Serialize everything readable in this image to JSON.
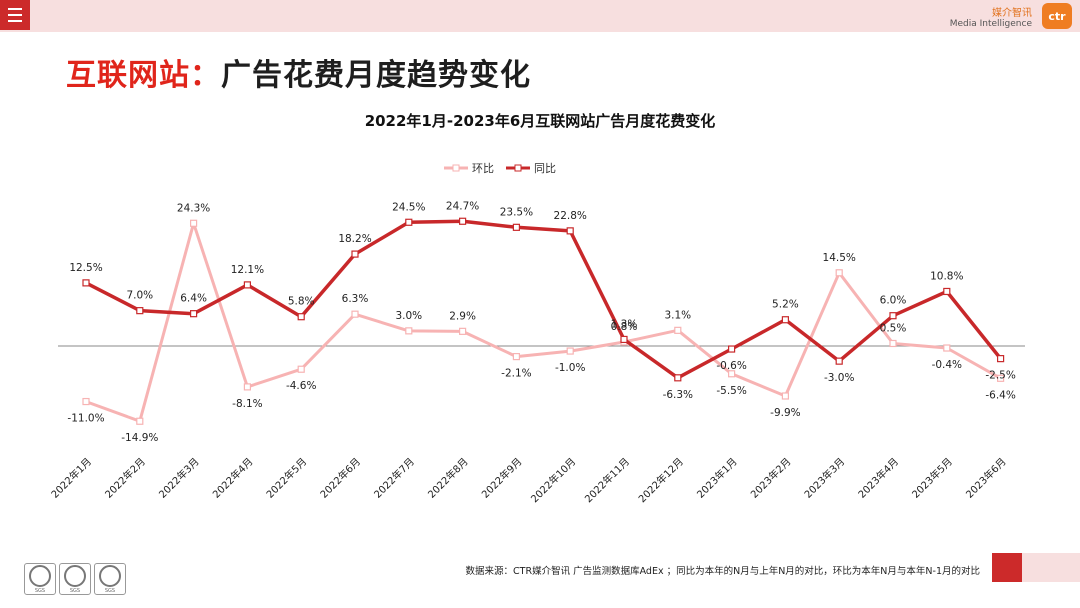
{
  "header": {
    "brand_cn": "媒介智讯",
    "brand_en": "Media Intelligence",
    "logo_text": "ctr"
  },
  "page": {
    "title_highlight": "互联网站：",
    "title_rest": "广告花费月度趋势变化"
  },
  "footer": {
    "source": "数据来源：CTR媒介智讯 广告监测数据库AdEx ；同比为本年的N月与上年N月的对比，环比为本年N月与本年N-1月的对比",
    "seal_label": "SGS"
  },
  "colors": {
    "accent": "#cc2a2a",
    "yoy": "#c8282a",
    "mom": "#f7b3b3",
    "topbar": "#f7dfdf"
  },
  "chart_data": {
    "type": "line",
    "title": "2022年1月-2023年6月互联网站广告月度花费变化",
    "categories": [
      "2022年1月",
      "2022年2月",
      "2022年3月",
      "2022年4月",
      "2022年5月",
      "2022年6月",
      "2022年7月",
      "2022年8月",
      "2022年9月",
      "2022年10月",
      "2022年11月",
      "2022年12月",
      "2023年1月",
      "2023年2月",
      "2023年3月",
      "2023年4月",
      "2023年5月",
      "2023年6月"
    ],
    "series": [
      {
        "name": "环比",
        "values": [
          -11.0,
          -14.9,
          24.3,
          -8.1,
          -4.6,
          6.3,
          3.0,
          2.9,
          -2.1,
          -1.0,
          0.8,
          3.1,
          -5.5,
          -9.9,
          14.5,
          0.5,
          -0.4,
          -6.4
        ],
        "labels": [
          "-11.0%",
          "-14.9%",
          "24.3%",
          "-8.1%",
          "-4.6%",
          "6.3%",
          "3.0%",
          "2.9%",
          "-2.1%",
          "-1.0%",
          "0.8%",
          "3.1%",
          "-5.5%",
          "-9.9%",
          "14.5%",
          "0.5%",
          "-0.4%",
          "-6.4%"
        ]
      },
      {
        "name": "同比",
        "values": [
          12.5,
          7.0,
          6.4,
          12.1,
          5.8,
          18.2,
          24.5,
          24.7,
          23.5,
          22.8,
          1.3,
          -6.3,
          -0.6,
          5.2,
          -3.0,
          6.0,
          10.8,
          -2.5
        ],
        "labels": [
          "12.5%",
          "7.0%",
          "6.4%",
          "12.1%",
          "5.8%",
          "18.2%",
          "24.5%",
          "24.7%",
          "23.5%",
          "22.8%",
          "1.3%",
          "-6.3%",
          "-0.6%",
          "5.2%",
          "-3.0%",
          "6.0%",
          "10.8%",
          "-2.5%"
        ]
      }
    ],
    "legend_position": "top-center",
    "grid": false,
    "ylim": [
      -17,
      27
    ]
  }
}
